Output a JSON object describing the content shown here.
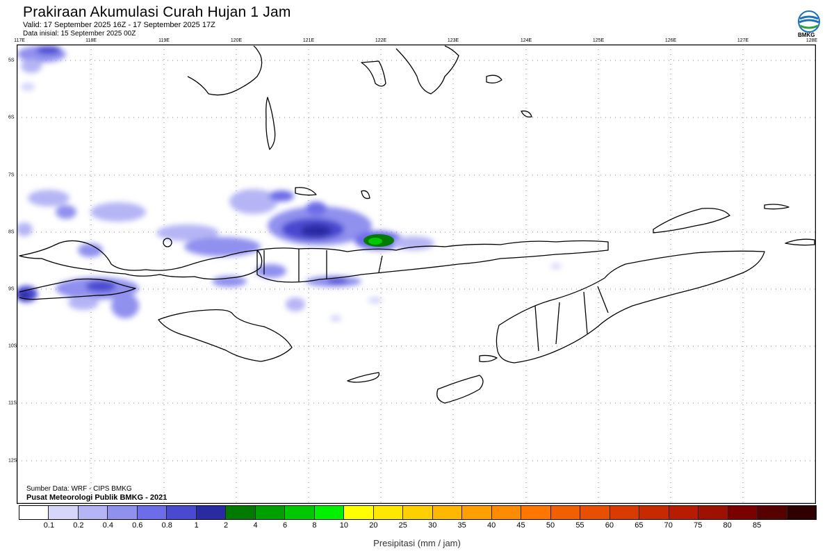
{
  "header": {
    "title": "Prakiraan Akumulasi Curah Hujan 1 Jam",
    "valid": "Valid: 17 September 2025 16Z - 17 September 2025 17Z",
    "initial": "Data inisial: 15 September 2025 00Z",
    "logo_text": "BMKG"
  },
  "map": {
    "lon_labels": [
      "117E",
      "118E",
      "119E",
      "120E",
      "121E",
      "122E",
      "123E",
      "124E",
      "125E",
      "126E",
      "127E",
      "128E"
    ],
    "lat_labels": [
      "5S",
      "6S",
      "7S",
      "8S",
      "9S",
      "10S",
      "11S",
      "12S"
    ],
    "extent": {
      "lon": [
        117,
        128
      ],
      "lat": [
        -4.8,
        -12.9
      ]
    }
  },
  "footer": {
    "source": "Sumber Data: WRF - CIPS BMKG",
    "publisher": "Pusat Meteorologi Publik BMKG - 2021"
  },
  "colorbar": {
    "colors": [
      "#ffffff",
      "#d6d6fb",
      "#b5b5f5",
      "#9090ef",
      "#6d6de9",
      "#4a4ad0",
      "#2a2aa3",
      "#007a00",
      "#00a000",
      "#00c800",
      "#00f000",
      "#ffff00",
      "#ffe800",
      "#ffd000",
      "#ffb800",
      "#ffa000",
      "#ff8c00",
      "#ff7700",
      "#f06000",
      "#e85000",
      "#d83a00",
      "#c82a00",
      "#b81c00",
      "#9e1000",
      "#7a0000",
      "#560000",
      "#2e0000"
    ],
    "ticks": [
      "0.1",
      "0.2",
      "0.4",
      "0.6",
      "0.8",
      "1",
      "2",
      "4",
      "6",
      "8",
      "10",
      "20",
      "25",
      "30",
      "35",
      "40",
      "45",
      "50",
      "55",
      "60",
      "65",
      "70",
      "75",
      "80",
      "85"
    ],
    "label": "Presipitasi (mm / jam)"
  }
}
